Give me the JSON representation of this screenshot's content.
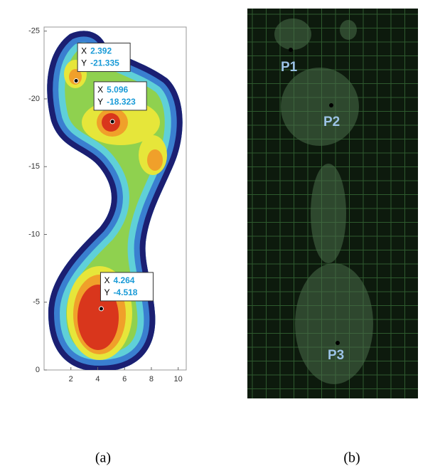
{
  "chart_data": {
    "type": "contour",
    "xlim": [
      0,
      10.6
    ],
    "ylim": [
      0,
      -25.3
    ],
    "xticks": [
      2,
      4,
      6,
      8,
      10
    ],
    "yticks": [
      0,
      -5,
      -10,
      -15,
      -20,
      -25
    ],
    "datatips": [
      {
        "x_label": "X",
        "x": 2.392,
        "y_label": "Y",
        "y": -21.335
      },
      {
        "x_label": "X",
        "x": 5.096,
        "y_label": "Y",
        "y": -18.323
      },
      {
        "x_label": "X",
        "x": 4.264,
        "y_label": "Y",
        "y": -4.518
      }
    ]
  },
  "photo": {
    "points": [
      "P1",
      "P2",
      "P3"
    ]
  },
  "captions": [
    "(a)",
    "(b)"
  ]
}
